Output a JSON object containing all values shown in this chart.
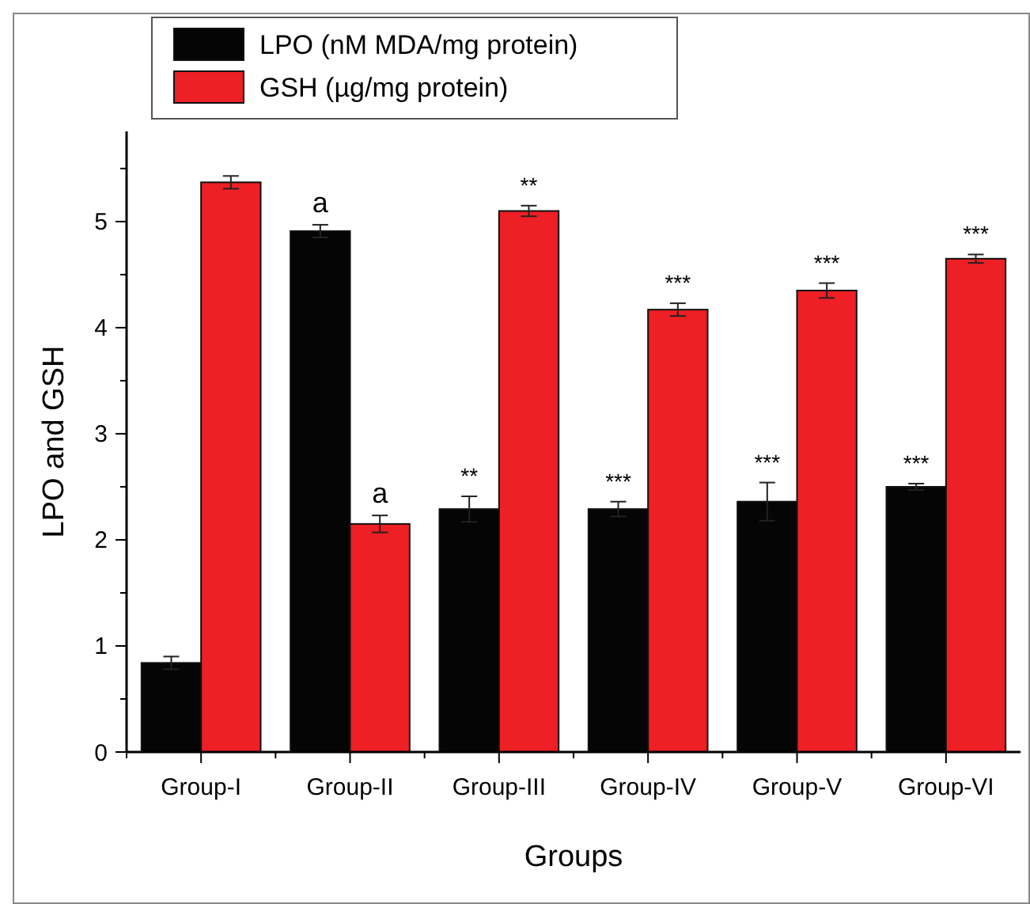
{
  "chart_data": {
    "type": "bar",
    "xlabel": "Groups",
    "ylabel": "LPO and GSH",
    "categories": [
      "Group-I",
      "Group-II",
      "Group-III",
      "Group-IV",
      "Group-V",
      "Group-VI"
    ],
    "series": [
      {
        "name": "LPO (nM MDA/mg protein)",
        "color": "#050505",
        "values": [
          0.84,
          4.91,
          2.29,
          2.29,
          2.36,
          2.5
        ],
        "errors": [
          0.06,
          0.06,
          0.12,
          0.07,
          0.18,
          0.03
        ]
      },
      {
        "name": "GSH (µg/mg protein)",
        "color": "#ee1f25",
        "values": [
          5.37,
          2.15,
          5.1,
          4.17,
          4.35,
          4.65
        ],
        "errors": [
          0.06,
          0.08,
          0.05,
          0.06,
          0.07,
          0.04
        ]
      }
    ],
    "ylim": [
      0,
      5.85
    ],
    "yticks": [
      {
        "value": 0,
        "label": "0"
      },
      {
        "value": 0.5,
        "label": null
      },
      {
        "value": 1,
        "label": "1"
      },
      {
        "value": 1.5,
        "label": null
      },
      {
        "value": 2,
        "label": "2"
      },
      {
        "value": 2.5,
        "label": null
      },
      {
        "value": 3,
        "label": "3"
      },
      {
        "value": 3.5,
        "label": null
      },
      {
        "value": 4,
        "label": "4"
      },
      {
        "value": 4.5,
        "label": null
      },
      {
        "value": 5,
        "label": "5"
      },
      {
        "value": 5.5,
        "label": null
      }
    ],
    "annotations": [
      {
        "text": "a",
        "x": "Group-II",
        "y": 4.97
      },
      {
        "text": "a",
        "x": "Group-II",
        "y": 2.23
      },
      {
        "text": "**",
        "x": "Group-III",
        "y": 2.41
      },
      {
        "text": "**",
        "x": "Group-III",
        "y": 5.15
      },
      {
        "text": "***",
        "x": "Group-IV",
        "y": 2.36
      },
      {
        "text": "***",
        "x": "Group-IV",
        "y": 4.23
      },
      {
        "text": "***",
        "x": "Group-V",
        "y": 2.54
      },
      {
        "text": "***",
        "x": "Group-V",
        "y": 4.42
      },
      {
        "text": "***",
        "x": "Group-VI",
        "y": 2.53
      },
      {
        "text": "***",
        "x": "Group-VI",
        "y": 4.69
      }
    ],
    "legend": "top left",
    "grid": false
  }
}
